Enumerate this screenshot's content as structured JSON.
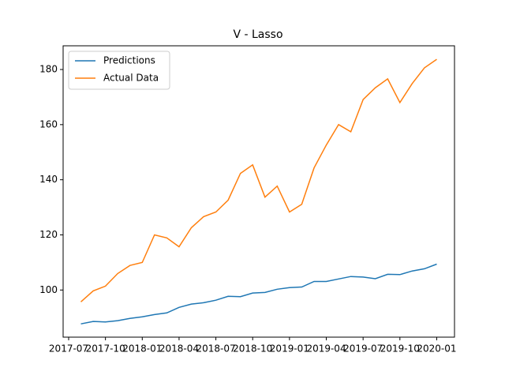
{
  "chart_data": {
    "type": "line",
    "title": "V - Lasso",
    "x": [
      "2017-08",
      "2017-09",
      "2017-10",
      "2017-11",
      "2017-12",
      "2018-01",
      "2018-02",
      "2018-03",
      "2018-04",
      "2018-05",
      "2018-06",
      "2018-07",
      "2018-08",
      "2018-09",
      "2018-10",
      "2018-11",
      "2018-12",
      "2019-01",
      "2019-02",
      "2019-03",
      "2019-04",
      "2019-05",
      "2019-06",
      "2019-07",
      "2019-08",
      "2019-09",
      "2019-10",
      "2019-11",
      "2019-12",
      "2020-01"
    ],
    "series": [
      {
        "name": "Predictions",
        "color": "#1f77b4",
        "values": [
          87.7,
          88.6,
          88.4,
          88.9,
          89.7,
          90.3,
          91.1,
          91.7,
          93.7,
          94.9,
          95.4,
          96.3,
          97.7,
          97.6,
          98.9,
          99.1,
          100.3,
          100.9,
          101.1,
          103.1,
          103.1,
          104.0,
          104.9,
          104.7,
          104.1,
          105.7,
          105.6,
          106.9,
          107.7,
          109.4
        ]
      },
      {
        "name": "Actual Data",
        "color": "#ff7f0e",
        "values": [
          95.7,
          99.7,
          101.4,
          106.0,
          108.9,
          110.0,
          120.0,
          118.9,
          115.7,
          122.6,
          126.6,
          128.3,
          132.6,
          142.3,
          145.4,
          133.7,
          137.7,
          128.3,
          131.1,
          144.3,
          152.6,
          160.0,
          157.4,
          169.1,
          173.4,
          176.6,
          168.0,
          174.9,
          180.6,
          183.7
        ]
      }
    ],
    "xticks": [
      "2017-07",
      "2017-10",
      "2018-01",
      "2018-04",
      "2018-07",
      "2018-10",
      "2019-01",
      "2019-04",
      "2019-07",
      "2019-10",
      "2020-01"
    ],
    "ylim": [
      82.9,
      188.6
    ],
    "yticks": [
      100,
      120,
      140,
      160,
      180
    ],
    "legend": "upper left"
  }
}
